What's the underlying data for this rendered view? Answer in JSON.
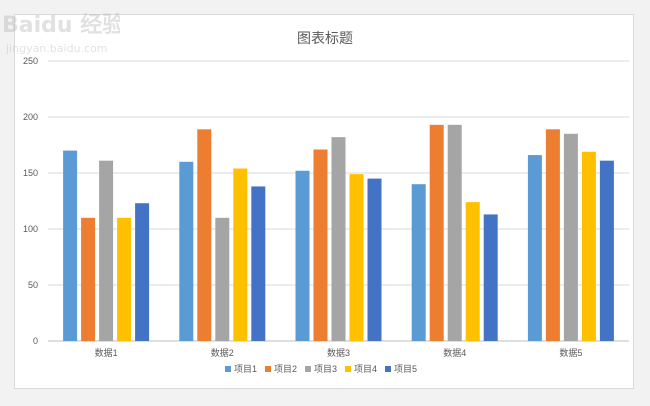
{
  "chart_data": {
    "type": "bar",
    "title": "图表标题",
    "categories": [
      "数据1",
      "数据2",
      "数据3",
      "数据4",
      "数据5"
    ],
    "series": [
      {
        "name": "项目1",
        "color": "#5b9bd5",
        "values": [
          170,
          160,
          152,
          140,
          166
        ]
      },
      {
        "name": "项目2",
        "color": "#ed7d31",
        "values": [
          110,
          189,
          171,
          193,
          189
        ]
      },
      {
        "name": "项目3",
        "color": "#a5a5a5",
        "values": [
          161,
          110,
          182,
          193,
          185
        ]
      },
      {
        "name": "项目4",
        "color": "#ffc000",
        "values": [
          110,
          154,
          149,
          124,
          169
        ]
      },
      {
        "name": "项目5",
        "color": "#4472c4",
        "values": [
          123,
          138,
          145,
          113,
          161
        ]
      }
    ],
    "ylim": [
      0,
      250
    ],
    "yticks": [
      0,
      50,
      100,
      150,
      200,
      250
    ],
    "grid": true,
    "legend_position": "bottom"
  },
  "watermark": {
    "brand": "Baidu 经验",
    "url": "jingyan.baidu.com"
  }
}
